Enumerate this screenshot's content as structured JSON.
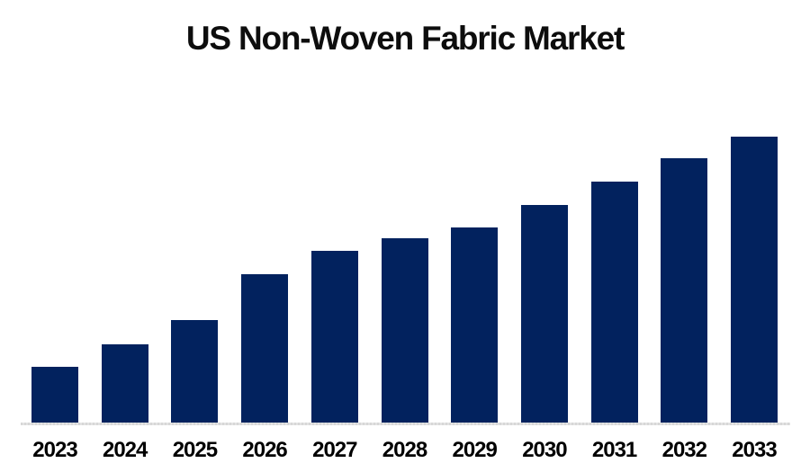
{
  "page": {
    "background_color": "#FFFFFF"
  },
  "header": {
    "title": "US Non-Woven Fabric Market"
  },
  "chart_data": {
    "type": "bar",
    "title": "US Non-Woven Fabric Market",
    "categories": [
      "2023",
      "2024",
      "2025",
      "2026",
      "2027",
      "2028",
      "2029",
      "2030",
      "2031",
      "2032",
      "2033"
    ],
    "values": [
      19.7,
      27.7,
      36.0,
      52.0,
      60.3,
      64.5,
      68.2,
      76.3,
      84.3,
      92.4,
      100.0
    ],
    "values_note": "No y-axis, gridlines or data labels are shown in the chart; values are relative bar heights normalized so 2033 = 100.",
    "xlabel": "",
    "ylabel": "",
    "ylim": [
      0,
      105
    ],
    "grid": false,
    "legend": false,
    "bar_color": "#02225E",
    "axis_line_color": "#D9D9D9",
    "label_color": "#000000",
    "title_color": "#0D0D0D"
  }
}
